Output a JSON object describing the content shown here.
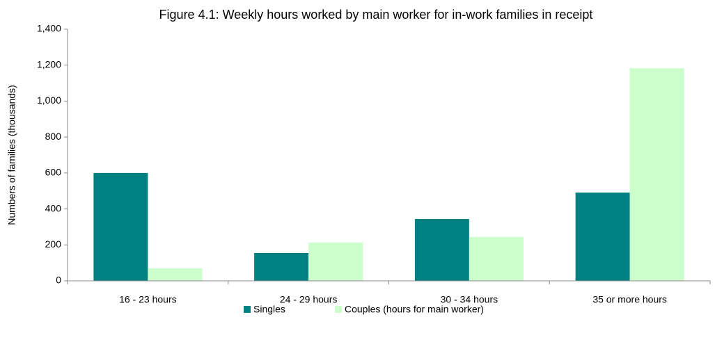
{
  "chart_data": {
    "type": "bar",
    "title": "Figure 4.1: Weekly hours worked by main worker for in-work families in receipt",
    "y_label": "Numbers of families (thousands)",
    "categories": [
      "16 - 23 hours",
      "24 - 29 hours",
      "30 - 34 hours",
      "35 or more hours"
    ],
    "series": [
      {
        "name": "Singles",
        "color": "#008080",
        "values": [
          600,
          155,
          344,
          491
        ]
      },
      {
        "name": "Couples (hours for main worker)",
        "color": "#ccffcc",
        "values": [
          70,
          213,
          244,
          1183
        ]
      }
    ],
    "ylim": [
      0,
      1400
    ],
    "yticks": [
      0,
      200,
      400,
      600,
      800,
      {
        "value": 1000,
        "label": "1,000"
      },
      {
        "value": 1200,
        "label": "1,200"
      },
      {
        "value": 1400,
        "label": "1,400"
      }
    ],
    "grid": false,
    "legend": "bottom"
  }
}
